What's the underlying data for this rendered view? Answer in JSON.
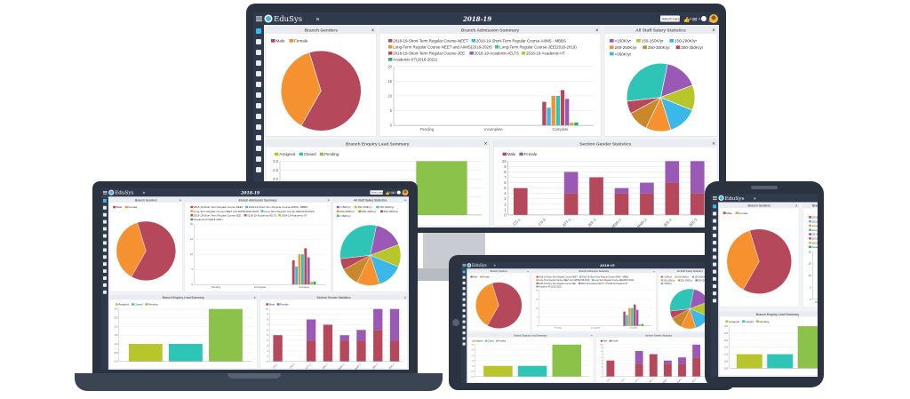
{
  "app": {
    "name": "EduSys",
    "year": "2018-19",
    "collapse_glyph": "»"
  },
  "header": {
    "language_select": "Select Langu",
    "badges": [
      "0",
      "0"
    ],
    "icons": [
      "menu-icon",
      "thumbs-up-icon",
      "mail-icon",
      "help-icon",
      "link-icon",
      "user-avatar"
    ]
  },
  "sidebar": {
    "icons": [
      "home-icon",
      "bank-icon",
      "monitor-icon",
      "info-icon",
      "user-plus-icon",
      "users-icon",
      "card-icon",
      "flag-icon",
      "document-icon",
      "document-icon",
      "document-icon",
      "document-icon",
      "star-icon",
      "map-pin-icon"
    ]
  },
  "panels": {
    "genders": {
      "title": "Branch Genders",
      "close": "×"
    },
    "admission": {
      "title": "Branch Admission Summary",
      "close": "×"
    },
    "salary": {
      "title": "All Staff Salary Statistics",
      "close": "×"
    },
    "enquiry": {
      "title": "Branch Enquiry Lead Summary",
      "close": "×"
    },
    "section": {
      "title": "Section Gender Statistics",
      "close": "×"
    }
  },
  "chart_data": [
    {
      "id": "branch-genders",
      "type": "pie",
      "labels": [
        "Male",
        "Female"
      ],
      "values": [
        63,
        37
      ],
      "colors": [
        "#b5495b",
        "#f5922f"
      ],
      "legend": "top"
    },
    {
      "id": "branch-admission",
      "type": "bar",
      "categories": [
        "Pending",
        "Incomplete",
        "Complete"
      ],
      "series": [
        {
          "name": "2018-19-Short-Term Regular Course-NEET",
          "color": "#b5495b",
          "values": [
            0,
            0,
            8
          ]
        },
        {
          "name": "2018-19-Short-Term Regular Course-AIIMS - MBBS",
          "color": "#3bb8e8",
          "values": [
            0,
            0,
            6
          ]
        },
        {
          "name": "Long-Term Regular Course-NEET and AIIMS(2018-2020)",
          "color": "#f5922f",
          "values": [
            0,
            0,
            10
          ]
        },
        {
          "name": "Long-Term Regular Course-JEE(2018-2019)",
          "color": "#2ec4b6",
          "values": [
            0,
            0,
            10
          ]
        },
        {
          "name": "2018-19-Short-Term Regular Course-JEE",
          "color": "#b5495b",
          "values": [
            0,
            0,
            12
          ]
        },
        {
          "name": "2018-19-Academic-IELTS",
          "color": "#9b59b6",
          "values": [
            0,
            0,
            9
          ]
        },
        {
          "name": "2018-19-Academic-IIT",
          "color": "#b8c62c",
          "values": [
            0,
            0,
            1
          ]
        },
        {
          "name": "Academic-IIT(2018-2021)",
          "color": "#27ae60",
          "values": [
            0,
            0,
            1
          ]
        }
      ],
      "yticks": [
        "20",
        "15",
        "10",
        "5",
        "0"
      ],
      "ylim": [
        0,
        20
      ],
      "legend": "top"
    },
    {
      "id": "staff-salary",
      "type": "pie",
      "labels": [
        "<150K/yr",
        "150-150K/yr",
        "150-200K/yr",
        "200-250K/yr",
        "250-300K/yr",
        "300-350K/yr",
        ">350K/yr"
      ],
      "values": [
        16,
        12,
        14,
        12,
        10,
        6,
        30
      ],
      "colors": [
        "#9b59b6",
        "#b8c62c",
        "#3bb8e8",
        "#f5922f",
        "#c9882c",
        "#b5495b",
        "#2ec4b6"
      ],
      "legend": "top"
    },
    {
      "id": "enquiry-lead",
      "type": "bar",
      "categories": [
        ""
      ],
      "series": [
        {
          "name": "Assigned",
          "color": "#b8c62c",
          "values": [
            1
          ]
        },
        {
          "name": "Closed",
          "color": "#2ec4b6",
          "values": [
            1
          ]
        },
        {
          "name": "Pending",
          "color": "#8bc34a",
          "values": [
            3
          ]
        }
      ],
      "yticks": [
        "3.0",
        "2.5",
        "2.0",
        "1.5",
        "1.0",
        "0.5",
        "0.0"
      ],
      "ylim": [
        0,
        3
      ],
      "legend": "top"
    },
    {
      "id": "section-gender",
      "type": "bar",
      "stacked": true,
      "categories": [
        "CS-1",
        "CS-2",
        "ATT-1",
        "JEE-1",
        "Math-1",
        "Math-2",
        "JEE-2",
        "JEE-3"
      ],
      "series": [
        {
          "name": "Male",
          "color": "#b5495b",
          "values": [
            5,
            0,
            4,
            7,
            4,
            4,
            6,
            4
          ]
        },
        {
          "name": "Female",
          "color": "#9b59b6",
          "values": [
            0,
            0,
            4,
            0,
            1,
            2,
            4,
            6
          ]
        }
      ],
      "yticks": [
        "10",
        "9",
        "8",
        "7",
        "6",
        "5",
        "4",
        "3",
        "2",
        "1",
        "0"
      ],
      "ylim": [
        0,
        10
      ],
      "legend": "top"
    }
  ]
}
